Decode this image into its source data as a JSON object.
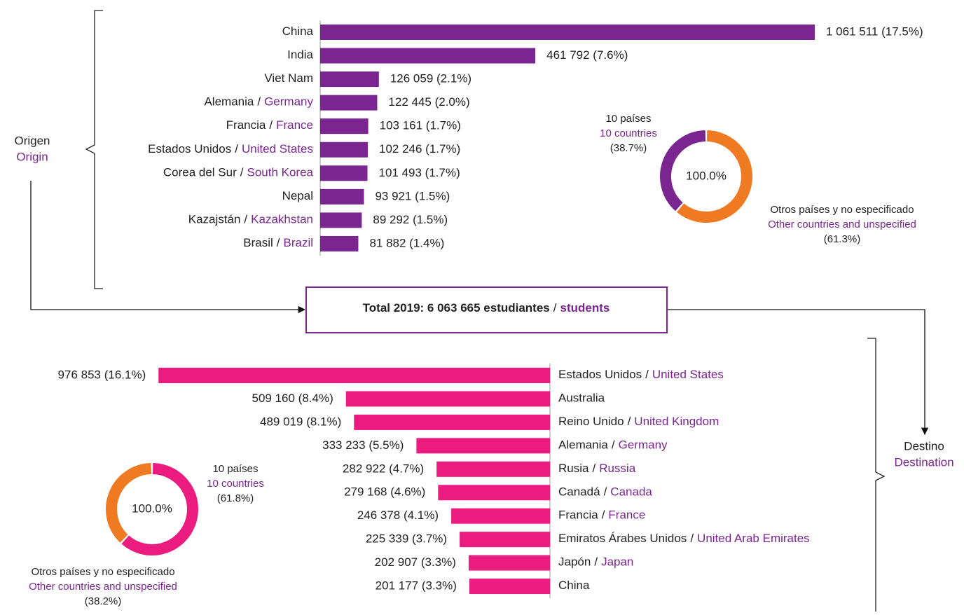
{
  "origin_label": {
    "es": "Origen",
    "en": "Origin"
  },
  "destination_label": {
    "es": "Destino",
    "en": "Destination"
  },
  "total": {
    "es": "Total 2019: 6 063 665 estudiantes",
    "separator": "/",
    "en": "students"
  },
  "chart_data": [
    {
      "type": "hbar",
      "separator": "/",
      "color": "#7b2590",
      "xlim": [
        0,
        1100000
      ],
      "categories": [
        "China",
        "India",
        "Viet Nam",
        "Alemania",
        "Francia",
        "Estados Unidos",
        "Corea del Sur",
        "Nepal",
        "Kazajstán",
        "Brasil"
      ],
      "categories_en": [
        null,
        null,
        null,
        "Germany",
        "France",
        "United States",
        "South Korea",
        null,
        "Kazakhstan",
        "Brazil"
      ],
      "values": [
        1061511,
        461792,
        126059,
        122445,
        103161,
        102246,
        101493,
        93921,
        89292,
        81882
      ],
      "value_labels": [
        "1 061 511 (17.5%)",
        "461 792 (7.6%)",
        "126 059 (2.1%)",
        "122 445 (2.0%)",
        "103 161 (1.7%)",
        "102 246 (1.7%)",
        "101 493 (1.7%)",
        "93 921 (1.5%)",
        "89 292 (1.5%)",
        "81 882 (1.4%)"
      ]
    },
    {
      "type": "donut",
      "clockwise": false,
      "center_label": "100.0%",
      "categories": [
        "10 países",
        "Otros países y no especificado"
      ],
      "categories_en": [
        "10 countries",
        "Other countries and unspecified"
      ],
      "values": [
        38.7,
        61.3
      ],
      "value_labels": [
        "(38.7%)",
        "(61.3%)"
      ],
      "colors": [
        "#7b2590",
        "#f07a22"
      ]
    },
    {
      "type": "hbar_left",
      "separator": "/",
      "color": "#ec1b7f",
      "xlim": [
        0,
        1000000
      ],
      "categories": [
        "Estados Unidos",
        "Australia",
        "Reino Unido",
        "Alemania",
        "Rusia",
        "Canadá",
        "Francia",
        "Emiratos Árabes Unidos",
        "Japón",
        "China"
      ],
      "categories_en": [
        "United States",
        null,
        "United Kingdom",
        "Germany",
        "Russia",
        "Canada",
        "France",
        "United Arab Emirates",
        "Japan",
        null
      ],
      "values": [
        976853,
        509160,
        489019,
        333233,
        282922,
        279168,
        246378,
        225339,
        202907,
        201177
      ],
      "value_labels": [
        "976 853 (16.1%)",
        "509 160 (8.4%)",
        "489 019 (8.1%)",
        "333 233 (5.5%)",
        "282 922 (4.7%)",
        "279 168 (4.6%)",
        "246 378 (4.1%)",
        "225 339 (3.7%)",
        "202 907 (3.3%)",
        "201 177 (3.3%)"
      ]
    },
    {
      "type": "donut",
      "clockwise": true,
      "center_label": "100.0%",
      "categories": [
        "10 países",
        "Otros países y no especificado"
      ],
      "categories_en": [
        "10 countries",
        "Other countries and unspecified"
      ],
      "values": [
        61.8,
        38.2
      ],
      "value_labels": [
        "(61.8%)",
        "(38.2%)"
      ],
      "colors": [
        "#ec1b7f",
        "#f07a22"
      ]
    }
  ]
}
